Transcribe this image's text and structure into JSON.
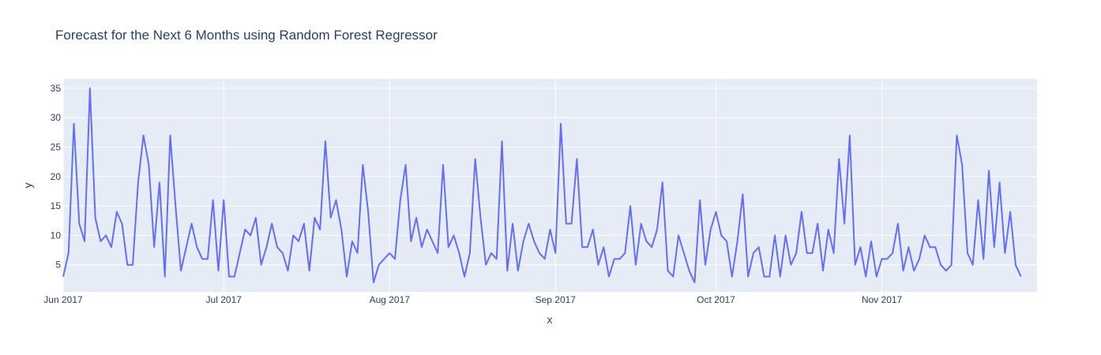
{
  "chart_data": {
    "type": "line",
    "title": "Forecast for the Next 6 Months using Random Forest Regressor",
    "xlabel": "x",
    "ylabel": "y",
    "start_date": "2017-06-01",
    "end_date": "2017-11-30",
    "x_tick_labels": [
      "Jun 2017",
      "Jul 2017",
      "Aug 2017",
      "Sep 2017",
      "Oct 2017",
      "Nov 2017"
    ],
    "x_tick_dates": [
      "2017-06-01",
      "2017-07-01",
      "2017-08-01",
      "2017-09-01",
      "2017-10-01",
      "2017-11-01"
    ],
    "y_ticks": [
      5,
      10,
      15,
      20,
      25,
      30,
      35
    ],
    "ylim": [
      0.4,
      36.6
    ],
    "grid": true,
    "colors": {
      "line": "#636efa",
      "plot_bg": "#e5ecf6",
      "grid": "#ffffff",
      "text": "#2a3f5f"
    },
    "series": [
      {
        "values": [
          3,
          7,
          29,
          12,
          9,
          35,
          13,
          9,
          10,
          8,
          14,
          12,
          5,
          5,
          19,
          27,
          22,
          8,
          19,
          3,
          27,
          15,
          4,
          8,
          12,
          8,
          6,
          6,
          16,
          4,
          16,
          3,
          3,
          7,
          11,
          10,
          13,
          5,
          8,
          12,
          8,
          7,
          4,
          10,
          9,
          12,
          4,
          13,
          11,
          26,
          13,
          16,
          11,
          3,
          9,
          7,
          22,
          14,
          2,
          5,
          6,
          7,
          6,
          16,
          22,
          9,
          13,
          8,
          11,
          9,
          7,
          22,
          8,
          10,
          7,
          3,
          7,
          23,
          13,
          5,
          7,
          6,
          26,
          4,
          12,
          4,
          9,
          12,
          9,
          7,
          6,
          11,
          7,
          29,
          12,
          12,
          23,
          8,
          8,
          11,
          5,
          8,
          3,
          6,
          6,
          7,
          15,
          5,
          12,
          9,
          8,
          11,
          19,
          4,
          3,
          10,
          7,
          4,
          2,
          16,
          5,
          11,
          14,
          10,
          9,
          3,
          9,
          17,
          3,
          7,
          8,
          3,
          3,
          10,
          3,
          10,
          5,
          7,
          14,
          7,
          7,
          12,
          4,
          11,
          7,
          23,
          12,
          27,
          5,
          8,
          3,
          9,
          3,
          6,
          6,
          7,
          12,
          4,
          8,
          4,
          6,
          10,
          8,
          8,
          5,
          4,
          5,
          27,
          22,
          7,
          5,
          16,
          6,
          21,
          8,
          19,
          7,
          14,
          5,
          3
        ]
      }
    ]
  }
}
